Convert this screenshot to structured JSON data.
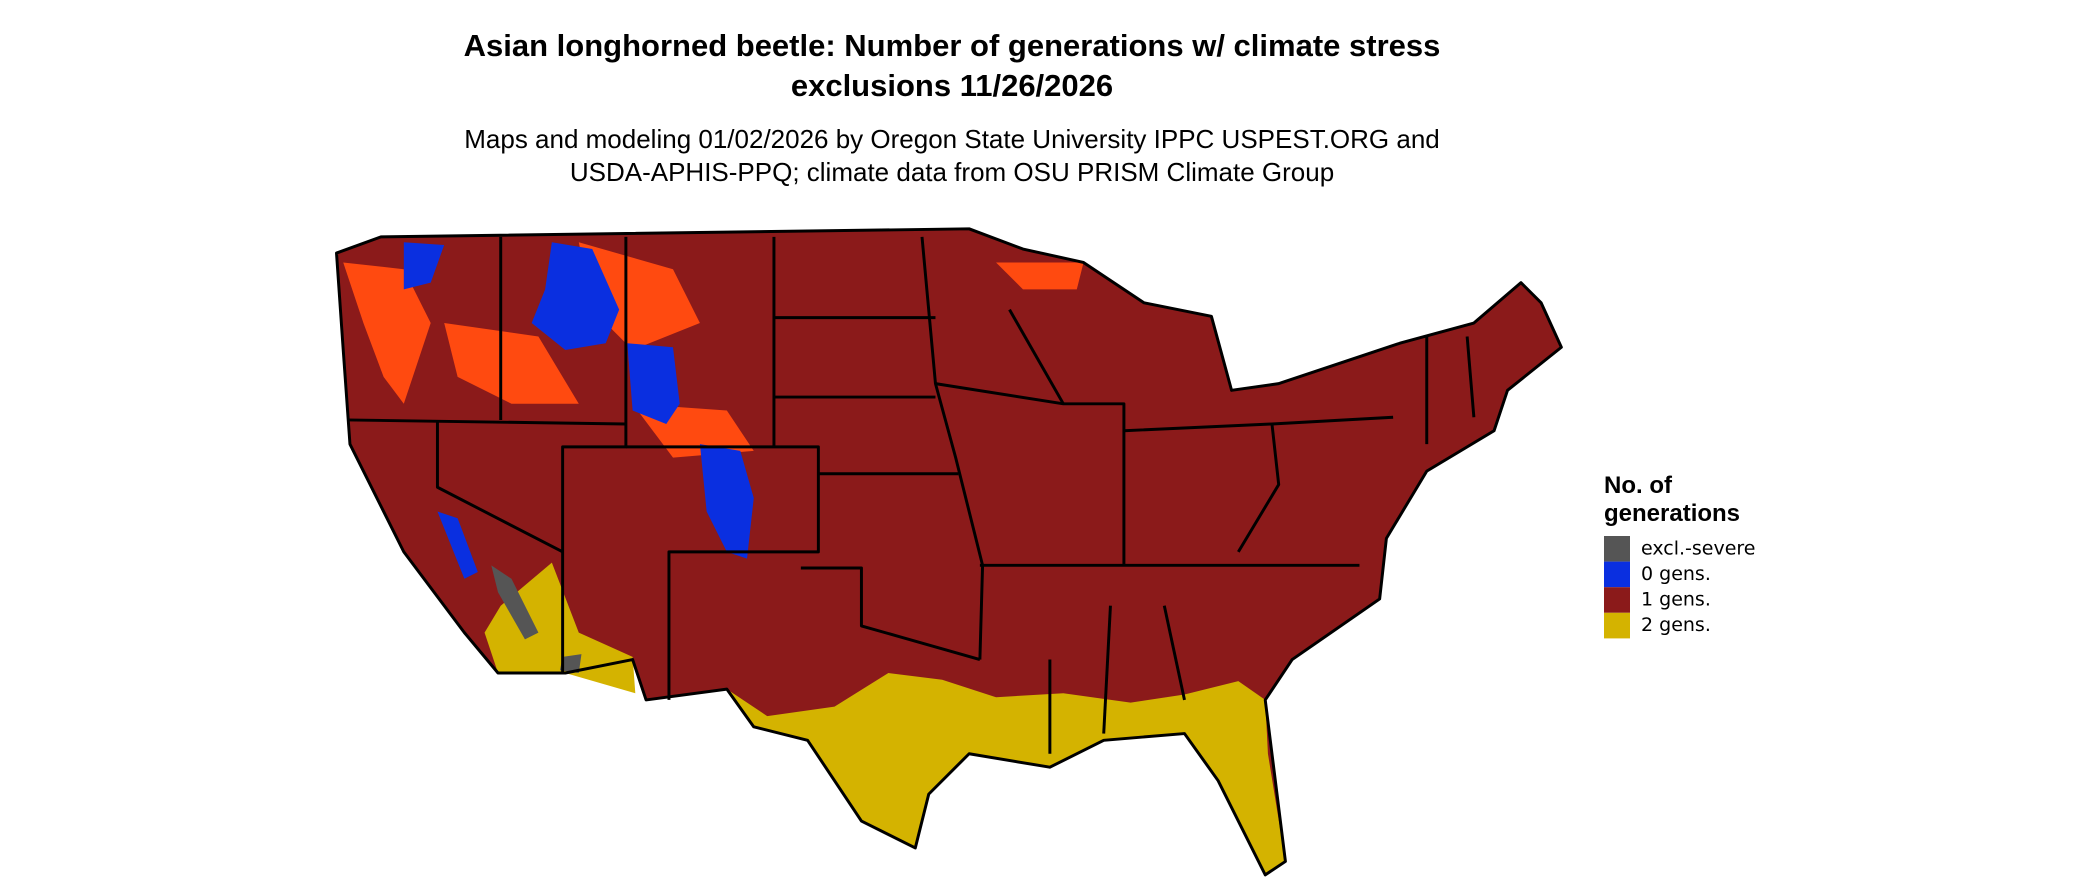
{
  "header": {
    "title": [
      "Asian longhorned beetle: Number of generations w/ climate stress",
      "exclusions 11/26/2026"
    ],
    "subtitle": [
      "Maps and modeling 01/02/2026 by Oregon State University IPPC USPEST.ORG and",
      "USDA-APHIS-PPQ; climate data from OSU PRISM Climate Group"
    ]
  },
  "legend": {
    "title": [
      "No. of",
      "generations"
    ],
    "items": [
      {
        "label": "excl.-severe",
        "color": "#555555"
      },
      {
        "label": "0 gens.",
        "color": "#0a2fe0"
      },
      {
        "label": "1 gens.",
        "color": "#8b1a1a"
      },
      {
        "label": "2 gens.",
        "color": "#d4b300"
      }
    ]
  }
}
